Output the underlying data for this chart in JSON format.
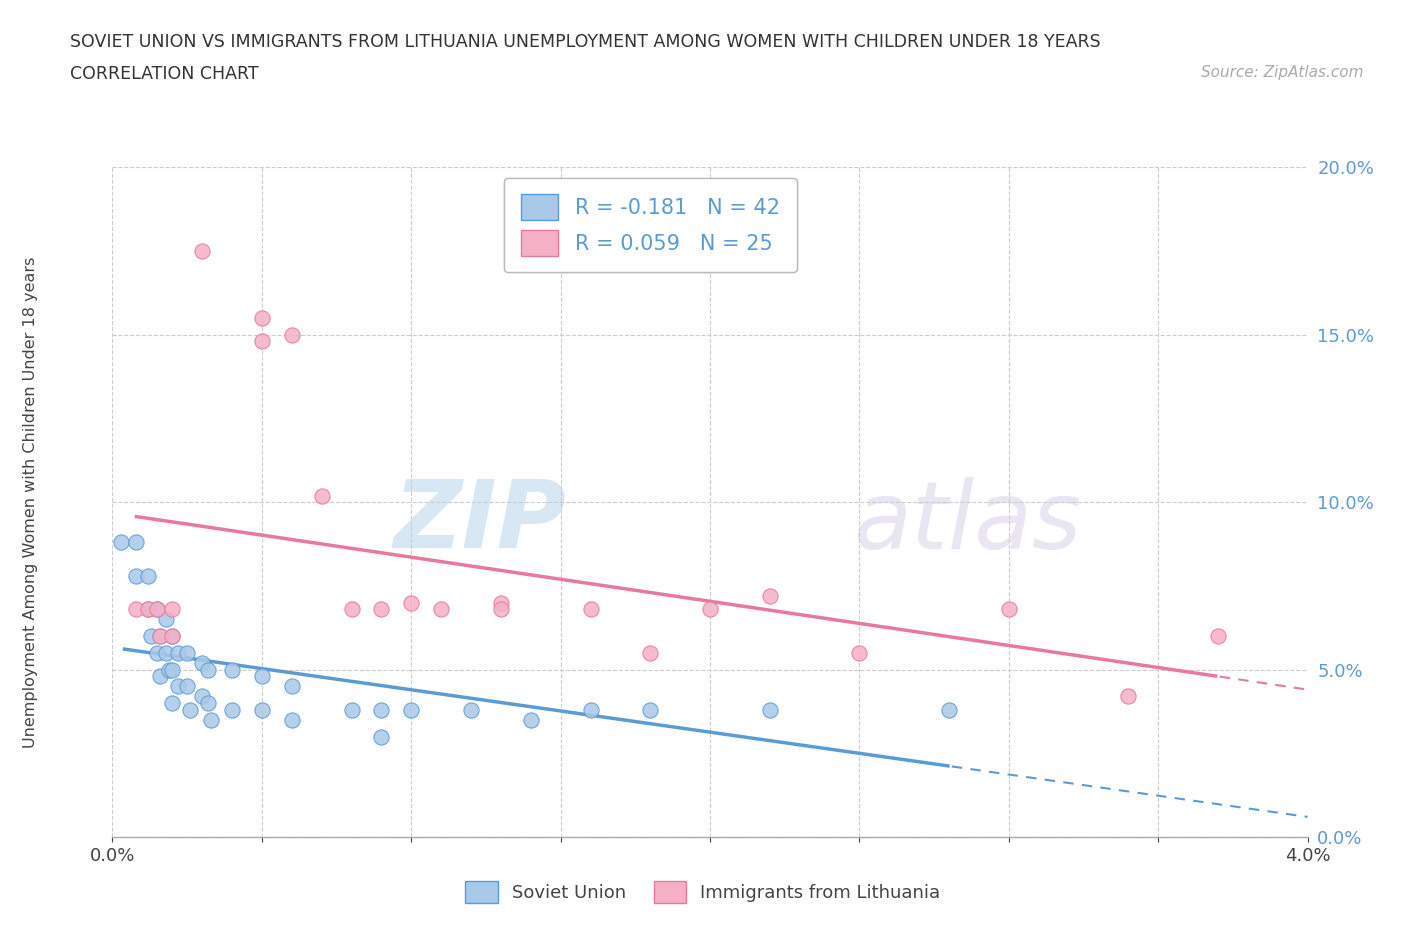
{
  "title_line1": "SOVIET UNION VS IMMIGRANTS FROM LITHUANIA UNEMPLOYMENT AMONG WOMEN WITH CHILDREN UNDER 18 YEARS",
  "title_line2": "CORRELATION CHART",
  "source_text": "Source: ZipAtlas.com",
  "ylabel": "Unemployment Among Women with Children Under 18 years",
  "xmin": 0.0,
  "xmax": 0.04,
  "ymin": 0.0,
  "ymax": 0.2,
  "yticks": [
    0.0,
    0.05,
    0.1,
    0.15,
    0.2
  ],
  "ytick_labels": [
    "0.0%",
    "5.0%",
    "10.0%",
    "15.0%",
    "20.0%"
  ],
  "soviet_union_x": [
    0.0003,
    0.0008,
    0.0008,
    0.0012,
    0.0012,
    0.0013,
    0.0015,
    0.0015,
    0.0016,
    0.0016,
    0.0018,
    0.0018,
    0.0019,
    0.002,
    0.002,
    0.002,
    0.0022,
    0.0022,
    0.0025,
    0.0025,
    0.0026,
    0.003,
    0.003,
    0.0032,
    0.0032,
    0.0033,
    0.004,
    0.004,
    0.005,
    0.005,
    0.006,
    0.006,
    0.008,
    0.009,
    0.009,
    0.01,
    0.012,
    0.014,
    0.016,
    0.018,
    0.022,
    0.028
  ],
  "soviet_union_y": [
    0.088,
    0.088,
    0.078,
    0.078,
    0.068,
    0.06,
    0.068,
    0.055,
    0.06,
    0.048,
    0.065,
    0.055,
    0.05,
    0.06,
    0.05,
    0.04,
    0.055,
    0.045,
    0.055,
    0.045,
    0.038,
    0.052,
    0.042,
    0.05,
    0.04,
    0.035,
    0.05,
    0.038,
    0.048,
    0.038,
    0.045,
    0.035,
    0.038,
    0.038,
    0.03,
    0.038,
    0.038,
    0.035,
    0.038,
    0.038,
    0.038,
    0.038
  ],
  "lithuania_x": [
    0.0008,
    0.0012,
    0.0015,
    0.0016,
    0.002,
    0.002,
    0.003,
    0.005,
    0.005,
    0.006,
    0.007,
    0.008,
    0.009,
    0.01,
    0.011,
    0.013,
    0.013,
    0.016,
    0.018,
    0.02,
    0.022,
    0.025,
    0.03,
    0.034,
    0.037
  ],
  "lithuania_y": [
    0.068,
    0.068,
    0.068,
    0.06,
    0.068,
    0.06,
    0.175,
    0.148,
    0.155,
    0.15,
    0.102,
    0.068,
    0.068,
    0.07,
    0.068,
    0.07,
    0.068,
    0.068,
    0.055,
    0.068,
    0.072,
    0.055,
    0.068,
    0.042,
    0.06
  ],
  "soviet_color": "#aac8e8",
  "lithuania_color": "#f5b0c5",
  "soviet_trend_color": "#5b9bd5",
  "lithuania_trend_color": "#e8799a",
  "soviet_R": -0.181,
  "soviet_N": 42,
  "lithuania_R": 0.059,
  "lithuania_N": 25,
  "watermark_zip": "ZIP",
  "watermark_atlas": "atlas",
  "grid_color": "#cccccc",
  "background_color": "#ffffff",
  "legend_label_color": "#5b9bd5",
  "axis_label_color": "#444444",
  "title_color": "#333333"
}
